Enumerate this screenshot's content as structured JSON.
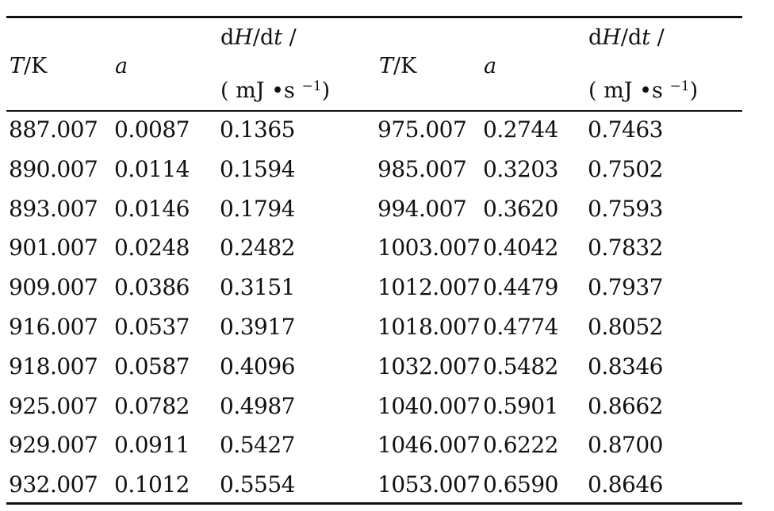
{
  "table": {
    "headers": {
      "left": {
        "T_var": "T",
        "T_unit": "/K",
        "a": "a",
        "dHdt_d1": "d",
        "dHdt_H": "H",
        "dHdt_slash": "/d",
        "dHdt_t": "t",
        "dHdt_tail": " /",
        "unit_open": "( mJ •s ",
        "unit_exp": "−1",
        "unit_close": ")"
      },
      "right": {
        "T_var": "T",
        "T_unit": "/K",
        "a": "a",
        "dHdt_d1": "d",
        "dHdt_H": "H",
        "dHdt_slash": "/d",
        "dHdt_t": "t",
        "dHdt_tail": " /",
        "unit_open": "( mJ •s ",
        "unit_exp": "−1",
        "unit_close": ")"
      }
    },
    "rows": [
      [
        "887.007",
        "0.0087",
        "0.1365",
        "975.007",
        "0.2744",
        "0.7463"
      ],
      [
        "890.007",
        "0.0114",
        "0.1594",
        "985.007",
        "0.3203",
        "0.7502"
      ],
      [
        "893.007",
        "0.0146",
        "0.1794",
        "994.007",
        "0.3620",
        "0.7593"
      ],
      [
        "901.007",
        "0.0248",
        "0.2482",
        "1003.007",
        "0.4042",
        "0.7832"
      ],
      [
        "909.007",
        "0.0386",
        "0.3151",
        "1012.007",
        "0.4479",
        "0.7937"
      ],
      [
        "916.007",
        "0.0537",
        "0.3917",
        "1018.007",
        "0.4774",
        "0.8052"
      ],
      [
        "918.007",
        "0.0587",
        "0.4096",
        "1032.007",
        "0.5482",
        "0.8346"
      ],
      [
        "925.007",
        "0.0782",
        "0.4987",
        "1040.007",
        "0.5901",
        "0.8662"
      ],
      [
        "929.007",
        "0.0911",
        "0.5427",
        "1046.007",
        "0.6222",
        "0.8700"
      ],
      [
        "932.007",
        "0.1012",
        "0.5554",
        "1053.007",
        "0.6590",
        "0.8646"
      ]
    ]
  }
}
